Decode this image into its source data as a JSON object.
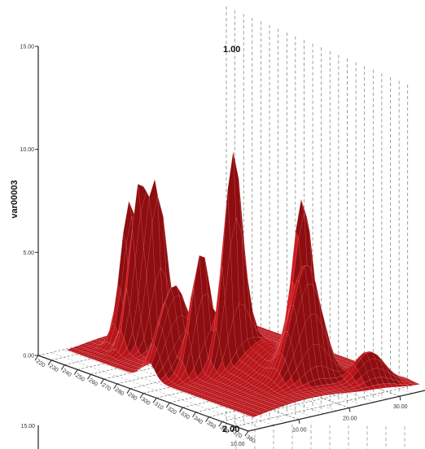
{
  "chart_data": {
    "type": "surface",
    "ylabel": "var00003",
    "z_ticks": [
      "0.00",
      "5.00",
      "10.00",
      "15.00"
    ],
    "z_range": [
      0,
      15
    ],
    "x_ticks": [
      "220",
      "230",
      "240",
      "250",
      "260",
      "270",
      "280",
      "290",
      "300",
      "310",
      "320",
      "330",
      "340",
      "350",
      "360",
      "370",
      "380"
    ],
    "x_range": [
      220,
      380
    ],
    "depth_ticks": [
      "10.00",
      "20.00",
      "30.00"
    ],
    "depth_range": [
      0,
      35
    ],
    "panels": [
      {
        "label": "1.00",
        "visible": "full"
      },
      {
        "label": "2.00",
        "visible": "partial"
      }
    ],
    "partial_panel_tick": "15.00",
    "partial_panel_depth_tick": "10.00",
    "colors": {
      "surface": "#d01a1f",
      "surface_dark": "#8e0d10",
      "mesh": "#f4b0b0",
      "grid": "#777777"
    },
    "peaks": [
      {
        "x": 252,
        "depth": 10,
        "z": 7.4
      },
      {
        "x": 262,
        "depth": 9,
        "z": 8.0
      },
      {
        "x": 268,
        "depth": 11,
        "z": 8.1
      },
      {
        "x": 300,
        "depth": 6,
        "z": 4.5
      },
      {
        "x": 313,
        "depth": 8,
        "z": 6.1
      },
      {
        "x": 322,
        "depth": 12,
        "z": 10.2
      },
      {
        "x": 345,
        "depth": 20,
        "z": 8.0
      },
      {
        "x": 355,
        "depth": 18,
        "z": 5.8
      },
      {
        "x": 368,
        "depth": 27,
        "z": 2.0
      }
    ]
  }
}
